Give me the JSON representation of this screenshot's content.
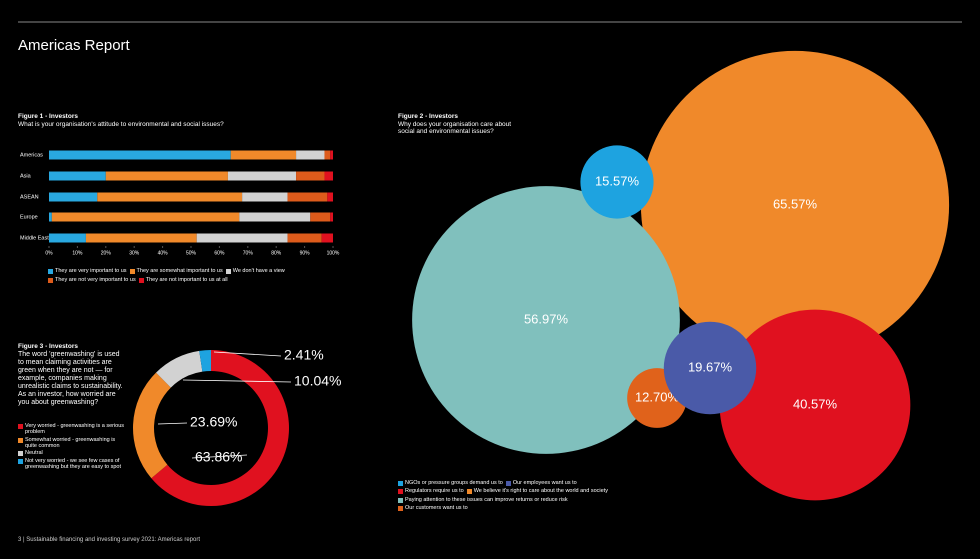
{
  "title": "Americas Report",
  "footer": "3 | Sustainable financing and investing survey 2021: Americas report",
  "chart_data": [
    {
      "type": "stacked-hbar",
      "title": "Figure 1 - Investors",
      "subtitle": "What is your organisation's attitude to environmental and social issues?",
      "categories": [
        "Americas",
        "Asia",
        "ASEAN",
        "Europe",
        "Middle East"
      ],
      "series": [
        {
          "name": "They are very important to us",
          "color": "#29a8e0",
          "values": [
            64,
            20,
            17,
            1,
            13
          ]
        },
        {
          "name": "They are somewhat important to us",
          "color": "#f0892a",
          "values": [
            23,
            43,
            51,
            66,
            39
          ]
        },
        {
          "name": "We don't have a view",
          "color": "#d2d2d2",
          "values": [
            10,
            24,
            16,
            25,
            32
          ]
        },
        {
          "name": "They are not very important to us",
          "color": "#dd5b1b",
          "values": [
            2,
            10,
            14,
            7,
            12
          ]
        },
        {
          "name": "They are not important to us at all",
          "color": "#e0111f",
          "values": [
            1,
            3,
            2,
            1,
            4
          ]
        }
      ],
      "xlim": [
        0,
        100
      ],
      "xticks": [
        {
          "value": 0,
          "label": "0%"
        },
        {
          "value": 10,
          "label": "10%"
        },
        {
          "value": 20,
          "label": "20%"
        },
        {
          "value": 30,
          "label": "30%"
        },
        {
          "value": 40,
          "label": "40%"
        },
        {
          "value": 50,
          "label": "50%"
        },
        {
          "value": 60,
          "label": "60%"
        },
        {
          "value": 70,
          "label": "70%"
        },
        {
          "value": 80,
          "label": "80%"
        },
        {
          "value": 90,
          "label": "90%"
        },
        {
          "value": 100,
          "label": "100%"
        }
      ]
    },
    {
      "type": "bubble",
      "title": "Figure 2 - Investors",
      "subtitle": "Why does your organisation care about social and environmental issues?",
      "series": [
        {
          "name": "NGOs or pressure groups demand us to",
          "color": "#1ea3e0",
          "values": [
            15.57
          ],
          "value_labels": [
            "15.57%"
          ]
        },
        {
          "name": "Our employees want us to",
          "color": "#4a5aa8",
          "values": [
            19.67
          ],
          "value_labels": [
            "19.67%"
          ]
        },
        {
          "name": "Regulators require us to",
          "color": "#e0111f",
          "values": [
            40.57
          ],
          "value_labels": [
            "40.57%"
          ]
        },
        {
          "name": "We believe it's right to care about the world and society",
          "color": "#f0892a",
          "values": [
            65.57
          ],
          "value_labels": [
            "65.57%"
          ]
        },
        {
          "name": "Paying attention to these issues can improve returns or reduce risk",
          "color": "#80c0bd",
          "values": [
            56.97
          ],
          "value_labels": [
            "56.97%"
          ]
        },
        {
          "name": "Our customers want us to",
          "color": "#e0621b",
          "values": [
            12.7
          ],
          "value_labels": [
            "12.70%"
          ]
        }
      ]
    },
    {
      "type": "donut",
      "title": "Figure 3 - Investors",
      "subtitle": "The word 'greenwashing' is used to mean claiming activities are green when they are not — for example, companies making unrealistic claims to sustainability. As an investor, how worried are you about greenwashing?",
      "categories": [
        "Very worried - greenwashing is a serious problem",
        "Somewhat worried - greenwashing is quite common",
        "Neutral",
        "Not very worried - we see few cases of greenwashing but they are easy to spot"
      ],
      "values": [
        63.86,
        23.69,
        10.04,
        2.41
      ],
      "value_labels": [
        "63.86%",
        "23.69%",
        "10.04%",
        "2.41%"
      ],
      "colors": [
        "#e0111f",
        "#f0892a",
        "#d2d2d2",
        "#1ea3e0"
      ]
    }
  ]
}
